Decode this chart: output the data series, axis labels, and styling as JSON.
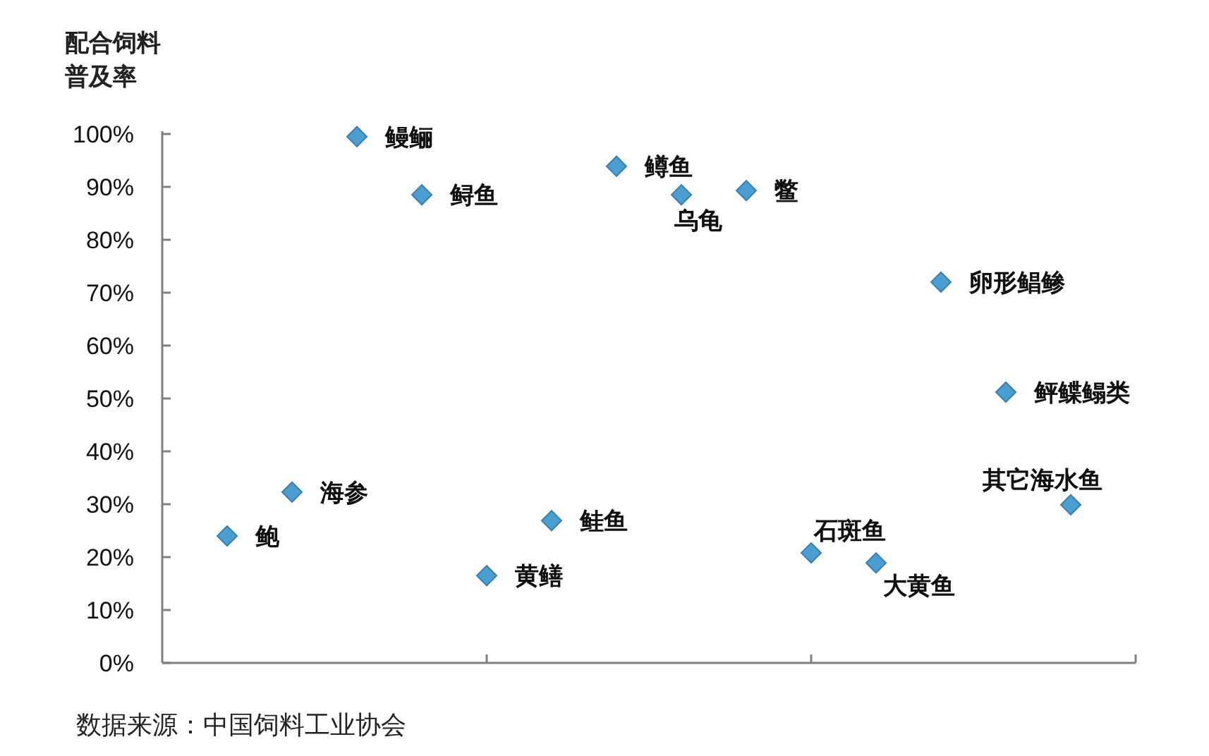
{
  "chart_data": {
    "type": "scatter",
    "ylabel": "配合饲料普及率",
    "categories": [
      null,
      null,
      null,
      null,
      null,
      null,
      null,
      null,
      null,
      null,
      null,
      null,
      null,
      null
    ],
    "values": [
      24,
      32.3,
      99.5,
      88.5,
      16.5,
      26.9,
      93.9,
      88.5,
      89.3,
      20.8,
      18.9,
      72,
      51.2,
      29.9
    ],
    "value_labels": [
      "鲍",
      "海参",
      "鳗鲡",
      "鲟鱼",
      "黄鳝",
      "鲑鱼",
      "鳟鱼",
      "乌龟",
      "鳖",
      "石斑鱼",
      "大黄鱼",
      "卵形鲳鲹",
      "鲆鲽鳎类",
      "其它海水鱼"
    ],
    "color": "#4a9fd0",
    "marker": "diamond",
    "grid": false,
    "tick_labels": "y",
    "ylim": [
      0,
      100
    ],
    "yticks": [
      {
        "value": 0,
        "label": "0%"
      },
      {
        "value": 10,
        "label": "10%"
      },
      {
        "value": 20,
        "label": "20%"
      },
      {
        "value": 30,
        "label": "30%"
      },
      {
        "value": 40,
        "label": "40%"
      },
      {
        "value": 50,
        "label": "50%"
      },
      {
        "value": 60,
        "label": "60%"
      },
      {
        "value": 70,
        "label": "70%"
      },
      {
        "value": 80,
        "label": "80%"
      },
      {
        "value": 90,
        "label": "90%"
      },
      {
        "value": 100,
        "label": "100%"
      }
    ],
    "annotations": [
      "数据来源：中国饲料工业协会"
    ]
  }
}
